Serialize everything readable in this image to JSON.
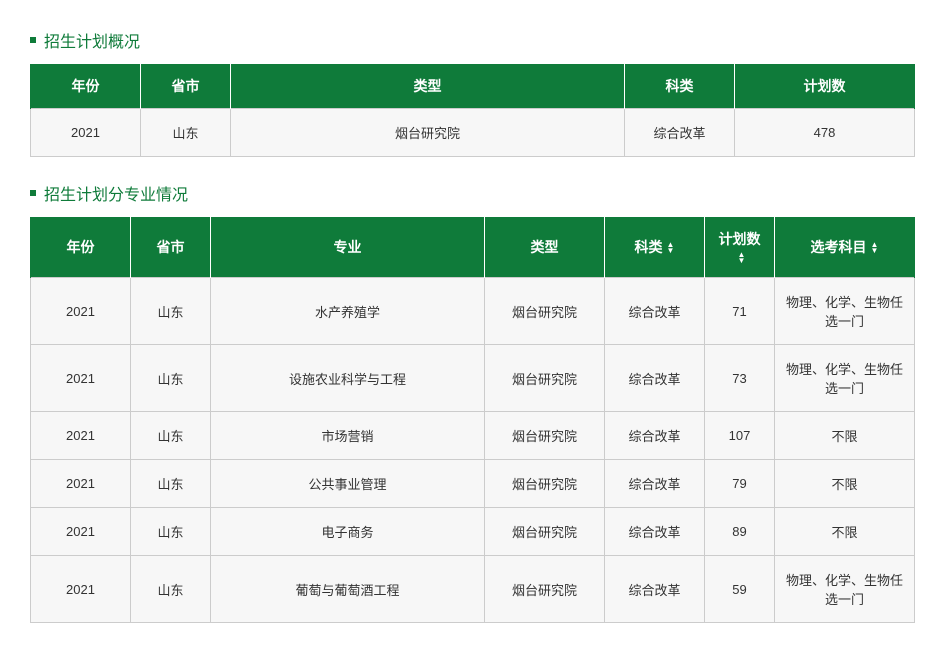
{
  "section1": {
    "title": "招生计划概况",
    "headers": [
      "年份",
      "省市",
      "类型",
      "科类",
      "计划数"
    ],
    "rows": [
      [
        "2021",
        "山东",
        "烟台研究院",
        "综合改革",
        "478"
      ]
    ]
  },
  "section2": {
    "title": "招生计划分专业情况",
    "headers": [
      "年份",
      "省市",
      "专业",
      "类型",
      "科类",
      "计划数",
      "选考科目"
    ],
    "sortable": [
      false,
      false,
      false,
      false,
      true,
      true,
      true
    ],
    "rows": [
      [
        "2021",
        "山东",
        "水产养殖学",
        "烟台研究院",
        "综合改革",
        "71",
        "物理、化学、生物任选一门"
      ],
      [
        "2021",
        "山东",
        "设施农业科学与工程",
        "烟台研究院",
        "综合改革",
        "73",
        "物理、化学、生物任选一门"
      ],
      [
        "2021",
        "山东",
        "市场营销",
        "烟台研究院",
        "综合改革",
        "107",
        "不限"
      ],
      [
        "2021",
        "山东",
        "公共事业管理",
        "烟台研究院",
        "综合改革",
        "79",
        "不限"
      ],
      [
        "2021",
        "山东",
        "电子商务",
        "烟台研究院",
        "综合改革",
        "89",
        "不限"
      ],
      [
        "2021",
        "山东",
        "葡萄与葡萄酒工程",
        "烟台研究院",
        "综合改革",
        "59",
        "物理、化学、生物任选一门"
      ]
    ]
  },
  "colors": {
    "primary_green": "#0f7b3a",
    "border_gray": "#cccccc",
    "row_bg": "#f7f7f7",
    "text": "#333333"
  }
}
